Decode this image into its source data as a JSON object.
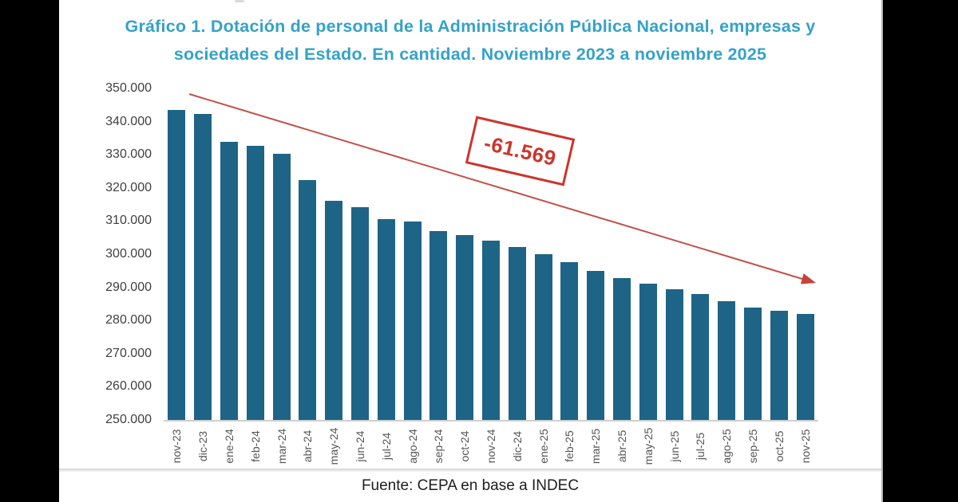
{
  "title": {
    "line1": "Gráfico 1. Dotación de personal de la Administración Pública Nacional, empresas y",
    "line2": "sociedades del Estado. En cantidad. Noviembre 2023 a noviembre 2025"
  },
  "footer": {
    "text": "Fuente: CEPA en base a INDEC"
  },
  "colors": {
    "title": "#35a2c7",
    "bar": "#1d6486",
    "accent_red": "#cc352c",
    "arrow_red": "#c4504a",
    "y_tick_text": "#3f3f3f",
    "x_tick_text": "#555555"
  },
  "chart_data": {
    "type": "bar",
    "title": "Gráfico 1. Dotación de personal de la Administración Pública Nacional, empresas y sociedades del Estado. En cantidad. Noviembre 2023 a noviembre 2025",
    "xlabel": "",
    "ylabel": "",
    "categories": [
      "nov-23",
      "dic-23",
      "ene-24",
      "feb-24",
      "mar-24",
      "abr-24",
      "may-24",
      "jun-24",
      "jul-24",
      "ago-24",
      "sep-24",
      "oct-24",
      "nov-24",
      "dic-24",
      "ene-25",
      "feb-25",
      "mar-25",
      "abr-25",
      "may-25",
      "jun-25",
      "jul-25",
      "ago-25",
      "sep-25",
      "oct-25",
      "nov-25"
    ],
    "values": [
      343500,
      342300,
      333900,
      332700,
      330200,
      322300,
      316200,
      314100,
      310700,
      309800,
      306900,
      305800,
      304200,
      302100,
      299900,
      297600,
      295000,
      292700,
      291100,
      289400,
      287900,
      285900,
      283900,
      282900,
      281931
    ],
    "ylim": [
      250000,
      350000
    ],
    "ytick_step": 10000,
    "ytick_labels": [
      "350.000",
      "340.000",
      "330.000",
      "320.000",
      "310.000",
      "300.000",
      "290.000",
      "280.000",
      "270.000",
      "260.000",
      "250.000"
    ],
    "grid": false,
    "legend": false,
    "bar_color": "#1d6486",
    "annotation": {
      "text": "-61.569"
    },
    "trend_arrow": "declining, from first bar top to last bar top"
  }
}
